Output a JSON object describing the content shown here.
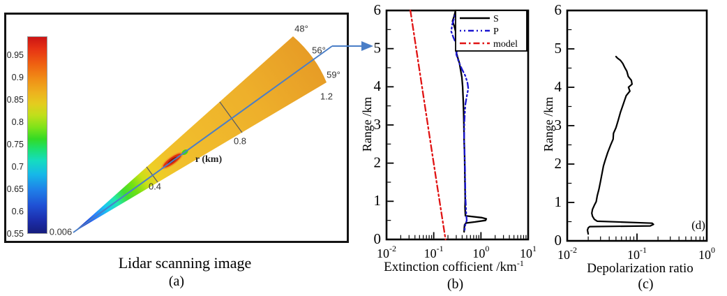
{
  "panel_a": {
    "caption": "Lidar scanning image",
    "label": "(a)",
    "colorbar_ticks": [
      "0.95",
      "0.9",
      "0.85",
      "0.8",
      "0.75",
      "0.7",
      "0.65",
      "0.6",
      "0.55"
    ],
    "origin_label": "0.006",
    "angle_48": "48°",
    "angle_56": "56°",
    "angle_59": "59°",
    "range_04": "0.4",
    "range_08": "0.8",
    "range_12": "1.2",
    "r_axis": "r (km)",
    "colors": {
      "beam_line": "#4a7ec7",
      "fan_yellow": "#efb62b",
      "hotspot_red": "#df3110",
      "hotspot_green": "#46d41c"
    }
  },
  "panel_b": {
    "label": "(b)",
    "ylabel": "Range /km",
    "xlabel": "Extinction cofficient /km",
    "xlabel_exp": "-1",
    "yticks": [
      "6",
      "5",
      "4",
      "3",
      "2",
      "1",
      "0"
    ],
    "xticks": [
      {
        "base": "10",
        "exp": "-2"
      },
      {
        "base": "10",
        "exp": "-1"
      },
      {
        "base": "10",
        "exp": "0"
      },
      {
        "base": "10",
        "exp": "1"
      }
    ]
  },
  "panel_c": {
    "label": "(c)",
    "inner_label": "(d)",
    "ylabel": "Range /km",
    "xlabel": "Depolarization ratio",
    "yticks": [
      "6",
      "5",
      "4",
      "3",
      "2",
      "1",
      "0"
    ],
    "xticks": [
      {
        "base": "10",
        "exp": "-2"
      },
      {
        "base": "10",
        "exp": "-1"
      },
      {
        "base": "10",
        "exp": "0"
      }
    ]
  },
  "chart_data": [
    {
      "panel": "b",
      "type": "line",
      "title": "Extinction coefficient profiles along 56° beam",
      "xlabel": "Extinction cofficient /km-1",
      "ylabel": "Range /km",
      "xscale": "log",
      "xlim": [
        0.01,
        10
      ],
      "ylim": [
        0,
        6
      ],
      "legend_position": "top-right",
      "series": [
        {
          "name": "S",
          "color": "#000000",
          "dash": "",
          "width": 2.3,
          "points": [
            [
              0.29,
              6.0
            ],
            [
              0.27,
              5.85
            ],
            [
              0.25,
              5.72
            ],
            [
              0.27,
              5.6
            ],
            [
              0.29,
              5.45
            ],
            [
              0.29,
              5.3
            ],
            [
              0.3,
              5.15
            ],
            [
              0.315,
              5.02
            ],
            [
              0.3,
              4.9
            ],
            [
              0.32,
              4.78
            ],
            [
              0.35,
              4.62
            ],
            [
              0.37,
              4.45
            ],
            [
              0.395,
              4.25
            ],
            [
              0.41,
              4.0
            ],
            [
              0.42,
              3.7
            ],
            [
              0.43,
              3.35
            ],
            [
              0.435,
              3.0
            ],
            [
              0.44,
              2.6
            ],
            [
              0.45,
              2.2
            ],
            [
              0.455,
              1.8
            ],
            [
              0.46,
              1.4
            ],
            [
              0.465,
              1.05
            ],
            [
              0.46,
              0.85
            ],
            [
              0.465,
              0.72
            ],
            [
              0.47,
              0.62
            ],
            [
              1.05,
              0.57
            ],
            [
              1.3,
              0.54
            ],
            [
              1.25,
              0.5
            ],
            [
              0.75,
              0.46
            ],
            [
              0.48,
              0.43
            ],
            [
              0.45,
              0.38
            ],
            [
              0.445,
              0.3
            ],
            [
              0.44,
              0.2
            ]
          ]
        },
        {
          "name": "P",
          "color": "#1a16cf",
          "dash": "2 4 2 4 8 4",
          "width": 2.3,
          "points": [
            [
              0.3,
              5.98
            ],
            [
              0.27,
              5.8
            ],
            [
              0.245,
              5.62
            ],
            [
              0.235,
              5.45
            ],
            [
              0.26,
              5.3
            ],
            [
              0.3,
              5.12
            ],
            [
              0.315,
              5.0
            ],
            [
              0.3,
              4.85
            ],
            [
              0.34,
              4.65
            ],
            [
              0.4,
              4.45
            ],
            [
              0.47,
              4.28
            ],
            [
              0.52,
              4.1
            ],
            [
              0.54,
              3.95
            ],
            [
              0.5,
              3.75
            ],
            [
              0.47,
              3.55
            ],
            [
              0.455,
              3.3
            ],
            [
              0.445,
              3.05
            ],
            [
              0.44,
              2.65
            ],
            [
              0.45,
              2.25
            ],
            [
              0.46,
              1.85
            ],
            [
              0.465,
              1.45
            ],
            [
              0.47,
              1.1
            ],
            [
              0.48,
              0.85
            ],
            [
              0.49,
              0.62
            ],
            [
              0.5,
              0.5
            ],
            [
              0.47,
              0.4
            ],
            [
              0.455,
              0.3
            ],
            [
              0.45,
              0.24
            ]
          ]
        },
        {
          "name": "model",
          "color": "#e01313",
          "dash": "9 4 2.5 4",
          "width": 2.3,
          "points": [
            [
              0.032,
              6.0
            ],
            [
              0.049,
              4.5
            ],
            [
              0.075,
              3.0
            ],
            [
              0.115,
              1.5
            ],
            [
              0.178,
              0.0
            ]
          ]
        }
      ]
    },
    {
      "panel": "c",
      "type": "line",
      "title": "Depolarization ratio profile",
      "xlabel": "Depolarization ratio",
      "ylabel": "Range /km",
      "xscale": "log",
      "xlim": [
        0.01,
        1
      ],
      "ylim": [
        0,
        6
      ],
      "series": [
        {
          "name": "depolarization",
          "color": "#000000",
          "dash": "",
          "width": 2.2,
          "points": [
            [
              0.02,
              0.18
            ],
            [
              0.0195,
              0.28
            ],
            [
              0.02,
              0.34
            ],
            [
              0.021,
              0.37
            ],
            [
              0.155,
              0.39
            ],
            [
              0.172,
              0.43
            ],
            [
              0.165,
              0.46
            ],
            [
              0.06,
              0.49
            ],
            [
              0.027,
              0.51
            ],
            [
              0.0245,
              0.56
            ],
            [
              0.023,
              0.64
            ],
            [
              0.0225,
              0.72
            ],
            [
              0.023,
              0.82
            ],
            [
              0.0245,
              0.93
            ],
            [
              0.026,
              1.02
            ],
            [
              0.027,
              1.18
            ],
            [
              0.0285,
              1.35
            ],
            [
              0.03,
              1.55
            ],
            [
              0.0315,
              1.75
            ],
            [
              0.033,
              1.95
            ],
            [
              0.035,
              2.1
            ],
            [
              0.038,
              2.3
            ],
            [
              0.042,
              2.5
            ],
            [
              0.0455,
              2.65
            ],
            [
              0.046,
              2.8
            ],
            [
              0.05,
              2.95
            ],
            [
              0.054,
              3.15
            ],
            [
              0.058,
              3.35
            ],
            [
              0.062,
              3.5
            ],
            [
              0.066,
              3.65
            ],
            [
              0.07,
              3.78
            ],
            [
              0.079,
              3.9
            ],
            [
              0.0755,
              4.0
            ],
            [
              0.085,
              4.08
            ],
            [
              0.083,
              4.18
            ],
            [
              0.075,
              4.28
            ],
            [
              0.0715,
              4.42
            ],
            [
              0.0665,
              4.52
            ],
            [
              0.0625,
              4.62
            ],
            [
              0.058,
              4.7
            ],
            [
              0.0525,
              4.76
            ],
            [
              0.05,
              4.8
            ]
          ]
        }
      ]
    }
  ]
}
